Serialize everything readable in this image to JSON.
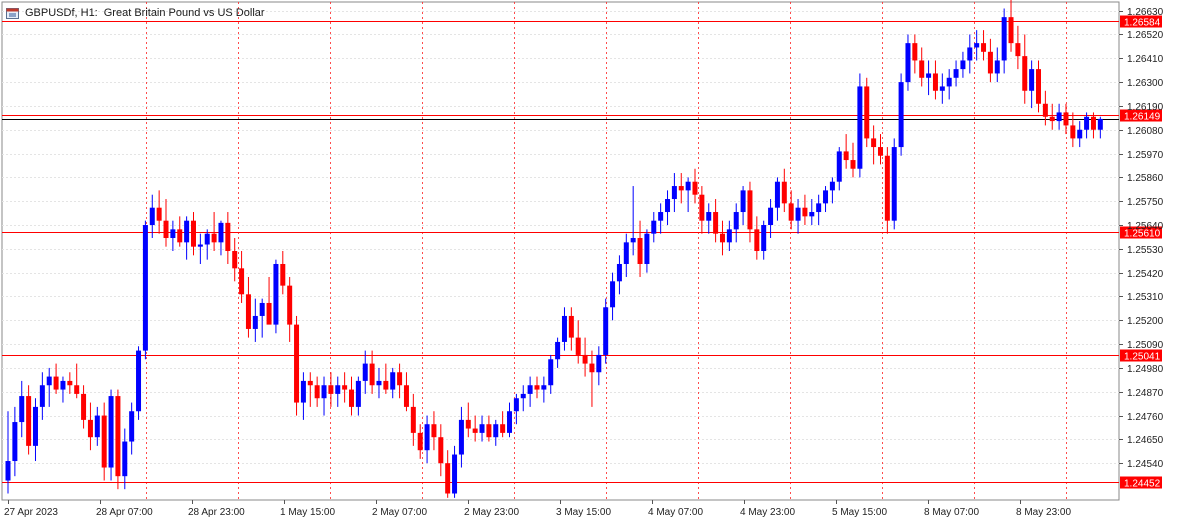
{
  "header": {
    "symbol_label": "GBPUSDf, H1:",
    "description": "Great Britain Pound vs US Dollar"
  },
  "chart_data": {
    "type": "candlestick",
    "symbol": "GBPUSDf",
    "timeframe": "H1",
    "title": "Great Britain Pound vs US Dollar",
    "ylim": [
      1.2437,
      1.2667
    ],
    "y_ticks": [
      "1.26630",
      "1.26520",
      "1.26410",
      "1.26300",
      "1.26190",
      "1.26080",
      "1.25970",
      "1.25860",
      "1.25750",
      "1.25640",
      "1.25530",
      "1.25420",
      "1.25310",
      "1.25200",
      "1.25090",
      "1.24980",
      "1.24870",
      "1.24760",
      "1.24650",
      "1.24540"
    ],
    "x_tick_labels": [
      "27 Apr 2023",
      "28 Apr 07:00",
      "28 Apr 23:00",
      "1 May 15:00",
      "2 May 07:00",
      "2 May 23:00",
      "3 May 15:00",
      "4 May 07:00",
      "4 May 23:00",
      "5 May 15:00",
      "8 May 07:00",
      "8 May 23:00"
    ],
    "horizontal_levels": [
      {
        "value": 1.26584,
        "label": "1.26584",
        "color": "#ff0000"
      },
      {
        "value": 1.26149,
        "label": "1.26149",
        "color": "#ff0000"
      },
      {
        "value": 1.2561,
        "label": "1.25610",
        "color": "#ff0000"
      },
      {
        "value": 1.25041,
        "label": "1.25041",
        "color": "#ff0000"
      },
      {
        "value": 1.24452,
        "label": "1.24452",
        "color": "#ff0000"
      }
    ],
    "current_price": {
      "value": 1.26128,
      "color": "#000000"
    },
    "grid": true,
    "bull_color": "#0000ff",
    "bear_color": "#ff0000",
    "candles": [
      [
        1.2446,
        1.2478,
        1.244,
        1.2455
      ],
      [
        1.2455,
        1.248,
        1.2448,
        1.2473
      ],
      [
        1.2473,
        1.2492,
        1.2466,
        1.2485
      ],
      [
        1.2485,
        1.249,
        1.2458,
        1.2462
      ],
      [
        1.2462,
        1.2484,
        1.2455,
        1.248
      ],
      [
        1.248,
        1.2496,
        1.2474,
        1.249
      ],
      [
        1.249,
        1.2498,
        1.248,
        1.2494
      ],
      [
        1.2494,
        1.25,
        1.2486,
        1.2488
      ],
      [
        1.2488,
        1.2494,
        1.2482,
        1.2492
      ],
      [
        1.2492,
        1.2496,
        1.2486,
        1.249
      ],
      [
        1.249,
        1.25,
        1.2484,
        1.2486
      ],
      [
        1.2486,
        1.249,
        1.247,
        1.2474
      ],
      [
        1.2474,
        1.2482,
        1.246,
        1.2466
      ],
      [
        1.2466,
        1.248,
        1.2462,
        1.2476
      ],
      [
        1.2476,
        1.2482,
        1.2446,
        1.2452
      ],
      [
        1.2452,
        1.2488,
        1.2446,
        1.2485
      ],
      [
        1.2485,
        1.2488,
        1.2442,
        1.2448
      ],
      [
        1.2448,
        1.247,
        1.2442,
        1.2464
      ],
      [
        1.2464,
        1.2482,
        1.2458,
        1.2478
      ],
      [
        1.2478,
        1.2508,
        1.2474,
        1.2506
      ],
      [
        1.2506,
        1.2566,
        1.2502,
        1.2564
      ],
      [
        1.2564,
        1.2578,
        1.2558,
        1.2572
      ],
      [
        1.2572,
        1.258,
        1.256,
        1.2566
      ],
      [
        1.2566,
        1.2576,
        1.2554,
        1.2558
      ],
      [
        1.2558,
        1.2566,
        1.2552,
        1.2562
      ],
      [
        1.2562,
        1.2568,
        1.2554,
        1.2556
      ],
      [
        1.2556,
        1.2568,
        1.2548,
        1.2566
      ],
      [
        1.2566,
        1.257,
        1.255,
        1.2554
      ],
      [
        1.2554,
        1.256,
        1.2546,
        1.2555
      ],
      [
        1.2555,
        1.2562,
        1.2548,
        1.256
      ],
      [
        1.256,
        1.257,
        1.2552,
        1.2556
      ],
      [
        1.2556,
        1.2566,
        1.255,
        1.2565
      ],
      [
        1.2565,
        1.257,
        1.2546,
        1.2552
      ],
      [
        1.2552,
        1.2558,
        1.2538,
        1.2544
      ],
      [
        1.2544,
        1.2552,
        1.2528,
        1.2532
      ],
      [
        1.2532,
        1.254,
        1.2512,
        1.2516
      ],
      [
        1.2516,
        1.253,
        1.251,
        1.2522
      ],
      [
        1.2522,
        1.253,
        1.2512,
        1.2528
      ],
      [
        1.2528,
        1.254,
        1.252,
        1.2518
      ],
      [
        1.2518,
        1.2548,
        1.2514,
        1.2546
      ],
      [
        1.2546,
        1.2552,
        1.2532,
        1.2536
      ],
      [
        1.2536,
        1.254,
        1.251,
        1.2518
      ],
      [
        1.2518,
        1.2522,
        1.2476,
        1.2482
      ],
      [
        1.2482,
        1.2496,
        1.2474,
        1.2492
      ],
      [
        1.2492,
        1.2496,
        1.248,
        1.249
      ],
      [
        1.249,
        1.2494,
        1.248,
        1.2484
      ],
      [
        1.2484,
        1.2494,
        1.2476,
        1.249
      ],
      [
        1.249,
        1.2496,
        1.248,
        1.2486
      ],
      [
        1.2486,
        1.2494,
        1.248,
        1.249
      ],
      [
        1.249,
        1.2496,
        1.2482,
        1.2488
      ],
      [
        1.2488,
        1.2494,
        1.2476,
        1.248
      ],
      [
        1.248,
        1.2494,
        1.2476,
        1.2492
      ],
      [
        1.2492,
        1.2506,
        1.2486,
        1.25
      ],
      [
        1.25,
        1.2506,
        1.2486,
        1.249
      ],
      [
        1.249,
        1.2498,
        1.2484,
        1.2492
      ],
      [
        1.2492,
        1.25,
        1.2486,
        1.2488
      ],
      [
        1.2488,
        1.2498,
        1.2484,
        1.2496
      ],
      [
        1.2496,
        1.25,
        1.2484,
        1.249
      ],
      [
        1.249,
        1.2496,
        1.2478,
        1.248
      ],
      [
        1.248,
        1.2486,
        1.2462,
        1.2468
      ],
      [
        1.2468,
        1.2472,
        1.2456,
        1.246
      ],
      [
        1.246,
        1.2476,
        1.2454,
        1.2472
      ],
      [
        1.2472,
        1.2478,
        1.246,
        1.2466
      ],
      [
        1.2466,
        1.2472,
        1.2448,
        1.2454
      ],
      [
        1.2454,
        1.246,
        1.2438,
        1.244
      ],
      [
        1.244,
        1.2462,
        1.2438,
        1.2458
      ],
      [
        1.2458,
        1.248,
        1.2452,
        1.2474
      ],
      [
        1.2474,
        1.2482,
        1.2466,
        1.247
      ],
      [
        1.247,
        1.2476,
        1.2464,
        1.2468
      ],
      [
        1.2468,
        1.2476,
        1.2464,
        1.2472
      ],
      [
        1.2472,
        1.2476,
        1.2464,
        1.2466
      ],
      [
        1.2466,
        1.2474,
        1.2462,
        1.2472
      ],
      [
        1.2472,
        1.2478,
        1.2466,
        1.2468
      ],
      [
        1.2468,
        1.2482,
        1.2466,
        1.2478
      ],
      [
        1.2478,
        1.2486,
        1.2472,
        1.2484
      ],
      [
        1.2484,
        1.249,
        1.2478,
        1.2486
      ],
      [
        1.2486,
        1.2494,
        1.248,
        1.249
      ],
      [
        1.249,
        1.2494,
        1.2484,
        1.2488
      ],
      [
        1.2488,
        1.2494,
        1.2482,
        1.249
      ],
      [
        1.249,
        1.2504,
        1.2486,
        1.2502
      ],
      [
        1.2502,
        1.2512,
        1.2498,
        1.251
      ],
      [
        1.251,
        1.2526,
        1.2506,
        1.2522
      ],
      [
        1.2522,
        1.2526,
        1.2506,
        1.2512
      ],
      [
        1.2512,
        1.252,
        1.25,
        1.2504
      ],
      [
        1.2504,
        1.2512,
        1.2494,
        1.25
      ],
      [
        1.25,
        1.2506,
        1.248,
        1.2496
      ],
      [
        1.2496,
        1.2508,
        1.249,
        1.2504
      ],
      [
        1.2504,
        1.253,
        1.25,
        1.2526
      ],
      [
        1.2526,
        1.2542,
        1.252,
        1.2538
      ],
      [
        1.2538,
        1.255,
        1.2532,
        1.2546
      ],
      [
        1.2546,
        1.256,
        1.254,
        1.2556
      ],
      [
        1.2556,
        1.2582,
        1.255,
        1.2558
      ],
      [
        1.2558,
        1.2566,
        1.254,
        1.2546
      ],
      [
        1.2546,
        1.2562,
        1.2542,
        1.256
      ],
      [
        1.256,
        1.257,
        1.2556,
        1.2566
      ],
      [
        1.2566,
        1.2574,
        1.256,
        1.257
      ],
      [
        1.257,
        1.258,
        1.2564,
        1.2576
      ],
      [
        1.2576,
        1.2588,
        1.257,
        1.2582
      ],
      [
        1.2582,
        1.2588,
        1.2574,
        1.258
      ],
      [
        1.258,
        1.2586,
        1.257,
        1.2584
      ],
      [
        1.2584,
        1.259,
        1.2574,
        1.2578
      ],
      [
        1.2578,
        1.2582,
        1.256,
        1.2566
      ],
      [
        1.2566,
        1.2574,
        1.256,
        1.257
      ],
      [
        1.257,
        1.2576,
        1.2556,
        1.256
      ],
      [
        1.256,
        1.2566,
        1.255,
        1.2556
      ],
      [
        1.2556,
        1.2566,
        1.2552,
        1.2562
      ],
      [
        1.2562,
        1.2574,
        1.2556,
        1.257
      ],
      [
        1.257,
        1.2582,
        1.2564,
        1.258
      ],
      [
        1.258,
        1.2584,
        1.2556,
        1.2562
      ],
      [
        1.2562,
        1.2568,
        1.2548,
        1.2552
      ],
      [
        1.2552,
        1.2566,
        1.2548,
        1.2564
      ],
      [
        1.2564,
        1.2576,
        1.2558,
        1.2572
      ],
      [
        1.2572,
        1.2586,
        1.2566,
        1.2584
      ],
      [
        1.2584,
        1.259,
        1.257,
        1.2574
      ],
      [
        1.2574,
        1.258,
        1.2562,
        1.2566
      ],
      [
        1.2566,
        1.2576,
        1.256,
        1.2572
      ],
      [
        1.2572,
        1.2578,
        1.2564,
        1.2568
      ],
      [
        1.2568,
        1.2576,
        1.2564,
        1.257
      ],
      [
        1.257,
        1.2578,
        1.2564,
        1.2574
      ],
      [
        1.2574,
        1.2582,
        1.257,
        1.258
      ],
      [
        1.258,
        1.2586,
        1.2574,
        1.2584
      ],
      [
        1.2584,
        1.26,
        1.258,
        1.2598
      ],
      [
        1.2598,
        1.2606,
        1.259,
        1.2594
      ],
      [
        1.2594,
        1.2602,
        1.2586,
        1.259
      ],
      [
        1.259,
        1.2634,
        1.2586,
        1.2628
      ],
      [
        1.2628,
        1.2632,
        1.26,
        1.2604
      ],
      [
        1.2604,
        1.261,
        1.2592,
        1.26
      ],
      [
        1.26,
        1.2606,
        1.2592,
        1.2596
      ],
      [
        1.2596,
        1.26,
        1.256,
        1.2566
      ],
      [
        1.2566,
        1.2604,
        1.2562,
        1.26
      ],
      [
        1.26,
        1.2634,
        1.2596,
        1.263
      ],
      [
        1.263,
        1.2652,
        1.2626,
        1.2648
      ],
      [
        1.2648,
        1.2652,
        1.2634,
        1.264
      ],
      [
        1.264,
        1.2646,
        1.2628,
        1.2632
      ],
      [
        1.2632,
        1.264,
        1.2624,
        1.2634
      ],
      [
        1.2634,
        1.264,
        1.2622,
        1.2626
      ],
      [
        1.2626,
        1.2634,
        1.262,
        1.2628
      ],
      [
        1.2628,
        1.2636,
        1.2622,
        1.2632
      ],
      [
        1.2632,
        1.264,
        1.2628,
        1.2636
      ],
      [
        1.2636,
        1.2644,
        1.2632,
        1.264
      ],
      [
        1.264,
        1.2652,
        1.2634,
        1.2646
      ],
      [
        1.2646,
        1.2654,
        1.264,
        1.2648
      ],
      [
        1.2648,
        1.2654,
        1.264,
        1.2644
      ],
      [
        1.2644,
        1.265,
        1.263,
        1.2634
      ],
      [
        1.2634,
        1.2646,
        1.263,
        1.264
      ],
      [
        1.264,
        1.2664,
        1.2634,
        1.266
      ],
      [
        1.266,
        1.2668,
        1.2644,
        1.2648
      ],
      [
        1.2648,
        1.2656,
        1.2636,
        1.2642
      ],
      [
        1.2642,
        1.2652,
        1.262,
        1.2626
      ],
      [
        1.2626,
        1.264,
        1.2618,
        1.2636
      ],
      [
        1.2636,
        1.264,
        1.2616,
        1.262
      ],
      [
        1.262,
        1.2626,
        1.261,
        1.2614
      ],
      [
        1.2614,
        1.262,
        1.2608,
        1.2612
      ],
      [
        1.2612,
        1.262,
        1.2608,
        1.2616
      ],
      [
        1.2616,
        1.262,
        1.2606,
        1.261
      ],
      [
        1.261,
        1.2616,
        1.26,
        1.2604
      ],
      [
        1.2604,
        1.2612,
        1.26,
        1.2608
      ],
      [
        1.2608,
        1.2616,
        1.2604,
        1.2614
      ],
      [
        1.2614,
        1.2616,
        1.2604,
        1.2608
      ],
      [
        1.2608,
        1.2614,
        1.2604,
        1.2613
      ]
    ]
  }
}
